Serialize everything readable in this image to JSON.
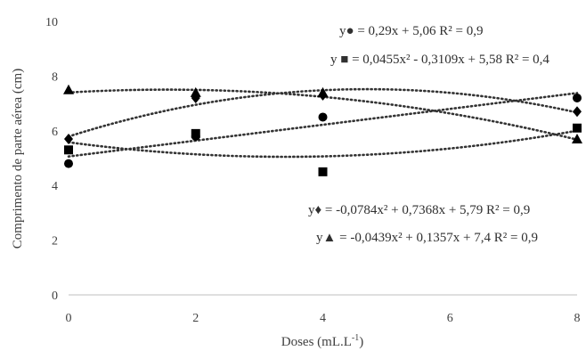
{
  "chart_data": {
    "type": "scatter",
    "xlabel": "Doses (mL.L-1)",
    "ylabel": "Comprimento de parte aérea (cm)",
    "xlim": [
      0,
      8
    ],
    "ylim": [
      0,
      10
    ],
    "x_ticks": [
      "0",
      "2",
      "4",
      "6",
      "8"
    ],
    "y_ticks": [
      "0",
      "2",
      "4",
      "6",
      "8",
      "10"
    ],
    "grid": false,
    "series": [
      {
        "marker": "circle",
        "x": [
          0,
          2,
          4,
          8
        ],
        "y": [
          4.8,
          5.8,
          6.5,
          7.2
        ],
        "trend": {
          "kind": "linear",
          "a": 0,
          "b": 0.29,
          "c": 5.06
        },
        "equation_symbol": "y●",
        "equation_text": " = 0,29x + 5,06 R² = 0,9"
      },
      {
        "marker": "square",
        "x": [
          0,
          2,
          4,
          8
        ],
        "y": [
          5.3,
          5.9,
          4.5,
          6.1
        ],
        "trend": {
          "kind": "quadratic",
          "a": 0.0455,
          "b": -0.3109,
          "c": 5.58
        },
        "equation_symbol": "y ■",
        "equation_text": " = 0,0455x² - 0,3109x + 5,58 R² = 0,4"
      },
      {
        "marker": "diamond",
        "x": [
          0,
          2,
          4,
          8
        ],
        "y": [
          5.7,
          7.2,
          7.3,
          6.7
        ],
        "trend": {
          "kind": "quadratic",
          "a": -0.0784,
          "b": 0.7368,
          "c": 5.79
        },
        "equation_symbol": "y♦",
        "equation_text": " = -0,0784x² + 0,7368x + 5,79 R² = 0,9"
      },
      {
        "marker": "triangle",
        "x": [
          0,
          2,
          4,
          8
        ],
        "y": [
          7.5,
          7.4,
          7.4,
          5.7
        ],
        "trend": {
          "kind": "quadratic",
          "a": -0.0439,
          "b": 0.1357,
          "c": 7.4
        },
        "equation_symbol": "y▲",
        "equation_text": " = -0,0439x² + 0,1357x + 7,4 R² = 0,9"
      }
    ]
  }
}
